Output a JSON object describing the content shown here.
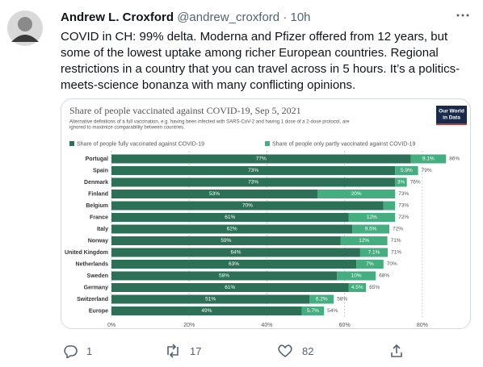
{
  "tweet": {
    "name": "Andrew L. Croxford",
    "handle": "@andrew_croxford",
    "separator": "·",
    "time": "10h",
    "text": "COVID in CH: 99% delta. Moderna and Pfizer offered from 12 years, but some of the lowest uptake among richer European countries. Regional restrictions in a country that you can travel across in 5 hours. It’s a politics-meets-science bonanza with many conflicting opinions.",
    "replies": 1,
    "retweets": 17,
    "likes": 82
  },
  "chart_data": {
    "type": "stacked-bar-horizontal",
    "title": "Share of people vaccinated against COVID-19, Sep 5, 2021",
    "subtitle": [
      "Alternative definitions of a full vaccination, e.g. having been infected with SARS-CoV-2 and having 1 dose of a 2-dose protocol, are",
      "ignored to maximize comparability between countries."
    ],
    "logo": [
      "Our World",
      "in Data"
    ],
    "categories": [
      "Portugal",
      "Spain",
      "Denmark",
      "Finland",
      "Belgium",
      "France",
      "Italy",
      "Norway",
      "United Kingdom",
      "Netherlands",
      "Sweden",
      "Germany",
      "Switzerland",
      "Europe"
    ],
    "series": [
      {
        "name": "Share of people fully vaccinated against COVID-19",
        "color": "#2d7058",
        "values": [
          77,
          73,
          73,
          53,
          70,
          61,
          62,
          59,
          64,
          63,
          58,
          61,
          51,
          49
        ],
        "value_labels": [
          "77%",
          "73%",
          "73%",
          "53%",
          "70%",
          "61%",
          "62%",
          "59%",
          "64%",
          "63%",
          "58%",
          "61%",
          "51%",
          "49%"
        ]
      },
      {
        "name": "Share of people only partly vaccinated against COVID-19",
        "color": "#44ae80",
        "values": [
          9.1,
          5.9,
          3,
          20,
          3,
          12,
          9.5,
          12,
          7.1,
          7,
          10,
          4.5,
          6.2,
          5.7
        ],
        "value_labels": [
          "9.1%",
          "5.9%",
          "3%",
          "20%",
          null,
          "12%",
          "9.5%",
          "12%",
          "7.1%",
          "7%",
          "10%",
          "4.5%",
          "6.2%",
          "5.7%"
        ]
      }
    ],
    "total_labels": [
      "86%",
      "79%",
      "76%",
      "73%",
      "73%",
      "72%",
      "72%",
      "71%",
      "71%",
      "70%",
      "68%",
      "65%",
      "58%",
      "54%"
    ],
    "xlim": [
      0,
      90
    ],
    "xticks": [
      {
        "value": 0,
        "label": "0%"
      },
      {
        "value": 20,
        "label": "20%"
      },
      {
        "value": 40,
        "label": "40%"
      },
      {
        "value": 60,
        "label": "60%"
      },
      {
        "value": 80,
        "label": "80%"
      }
    ],
    "grid": true
  }
}
